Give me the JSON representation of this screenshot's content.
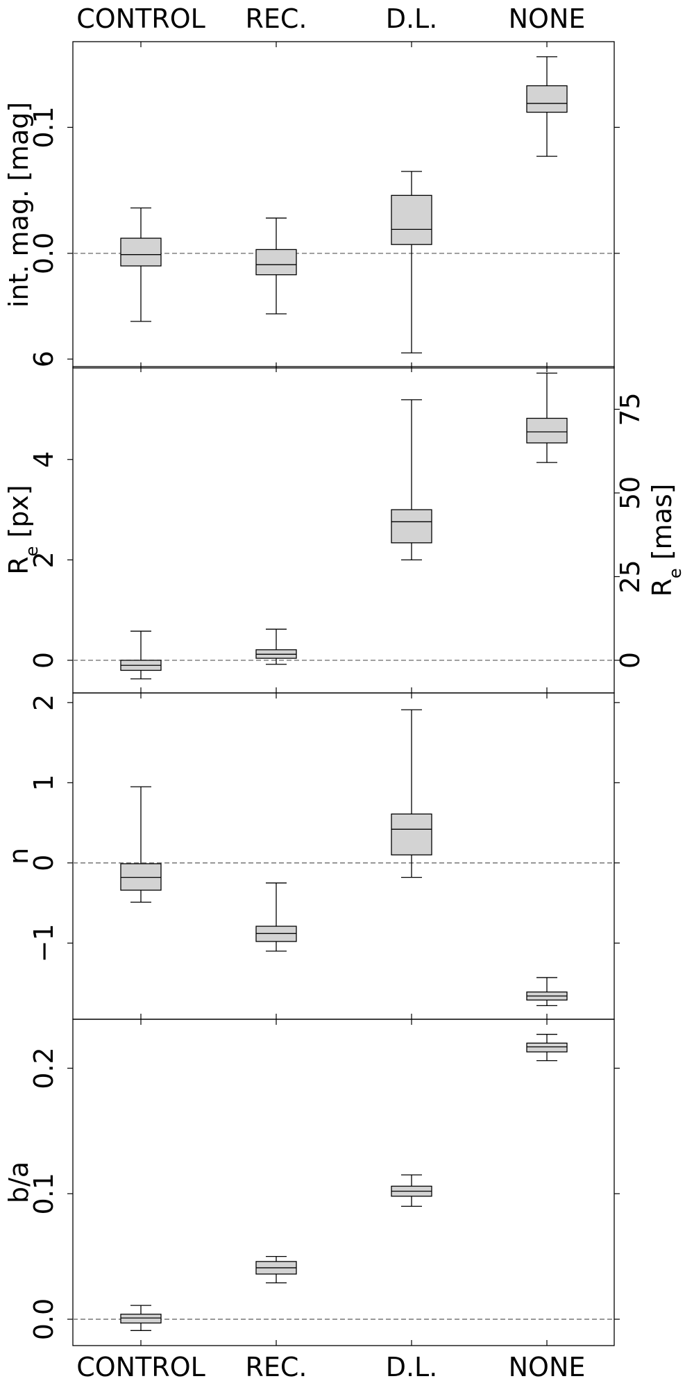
{
  "chart_data": {
    "type": "box",
    "categories": [
      "CONTROL",
      "REC.",
      "D.L.",
      "NONE"
    ],
    "style": {
      "box_fill": "#d3d3d3",
      "box_edge": "#000000",
      "reference_line": "#808080"
    },
    "panels": [
      {
        "ylabel": "int. mag. [mag]",
        "ylim": [
          -0.091,
          0.168
        ],
        "yticks": [
          0.0,
          0.1
        ],
        "ytick_labels": [
          "0.0",
          "0.1"
        ],
        "reference_line": 0.0,
        "boxes": [
          {
            "category": "CONTROL",
            "whislo": -0.054,
            "q1": -0.01,
            "median": -0.001,
            "q3": 0.012,
            "whishi": 0.036
          },
          {
            "category": "REC.",
            "whislo": -0.048,
            "q1": -0.017,
            "median": -0.009,
            "q3": 0.003,
            "whishi": 0.028
          },
          {
            "category": "D.L.",
            "whislo": -0.079,
            "q1": 0.007,
            "median": 0.019,
            "q3": 0.046,
            "whishi": 0.065
          },
          {
            "category": "NONE",
            "whislo": 0.077,
            "q1": 0.112,
            "median": 0.119,
            "q3": 0.133,
            "whishi": 0.156
          }
        ]
      },
      {
        "ylabel": "R_e [px]",
        "ylim": [
          -0.65,
          5.85
        ],
        "yticks": [
          0,
          2,
          4,
          6
        ],
        "ytick_labels": [
          "0",
          "2",
          "4",
          "6"
        ],
        "reference_line": 0.0,
        "right_axis": {
          "ylabel": "R_e [mas]",
          "scale_factor": 15,
          "yticks": [
            0,
            25,
            50,
            75
          ],
          "ytick_labels": [
            "0",
            "25",
            "50",
            "75"
          ]
        },
        "boxes": [
          {
            "category": "CONTROL",
            "whislo": -0.37,
            "q1": -0.2,
            "median": -0.1,
            "q3": 0.0,
            "whishi": 0.58
          },
          {
            "category": "REC.",
            "whislo": -0.08,
            "q1": 0.04,
            "median": 0.12,
            "q3": 0.21,
            "whishi": 0.62
          },
          {
            "category": "D.L.",
            "whislo": 2.0,
            "q1": 2.34,
            "median": 2.76,
            "q3": 3.0,
            "whishi": 5.19
          },
          {
            "category": "NONE",
            "whislo": 3.94,
            "q1": 4.33,
            "median": 4.55,
            "q3": 4.82,
            "whishi": 5.72
          }
        ]
      },
      {
        "ylabel": "n",
        "ylim": [
          -1.95,
          2.12
        ],
        "yticks": [
          -1,
          0,
          1,
          2
        ],
        "ytick_labels": [
          "−1",
          "0",
          "1",
          "2"
        ],
        "reference_line": 0.0,
        "boxes": [
          {
            "category": "CONTROL",
            "whislo": -0.49,
            "q1": -0.34,
            "median": -0.18,
            "q3": -0.01,
            "whishi": 0.95
          },
          {
            "category": "REC.",
            "whislo": -1.1,
            "q1": -0.98,
            "median": -0.88,
            "q3": -0.79,
            "whishi": -0.25
          },
          {
            "category": "D.L.",
            "whislo": -0.18,
            "q1": 0.1,
            "median": 0.42,
            "q3": 0.61,
            "whishi": 1.91
          },
          {
            "category": "NONE",
            "whislo": -1.78,
            "q1": -1.71,
            "median": -1.66,
            "q3": -1.61,
            "whishi": -1.43
          }
        ]
      },
      {
        "ylabel": "b/a",
        "ylim": [
          -0.021,
          0.239
        ],
        "yticks": [
          0.0,
          0.1,
          0.2
        ],
        "ytick_labels": [
          "0.0",
          "0.1",
          "0.2"
        ],
        "reference_line": 0.0,
        "boxes": [
          {
            "category": "CONTROL",
            "whislo": -0.009,
            "q1": -0.003,
            "median": 0.001,
            "q3": 0.004,
            "whishi": 0.011
          },
          {
            "category": "REC.",
            "whislo": 0.029,
            "q1": 0.036,
            "median": 0.041,
            "q3": 0.046,
            "whishi": 0.05
          },
          {
            "category": "D.L.",
            "whislo": 0.09,
            "q1": 0.098,
            "median": 0.102,
            "q3": 0.106,
            "whishi": 0.115
          },
          {
            "category": "NONE",
            "whislo": 0.206,
            "q1": 0.213,
            "median": 0.217,
            "q3": 0.22,
            "whishi": 0.227
          }
        ]
      }
    ]
  }
}
